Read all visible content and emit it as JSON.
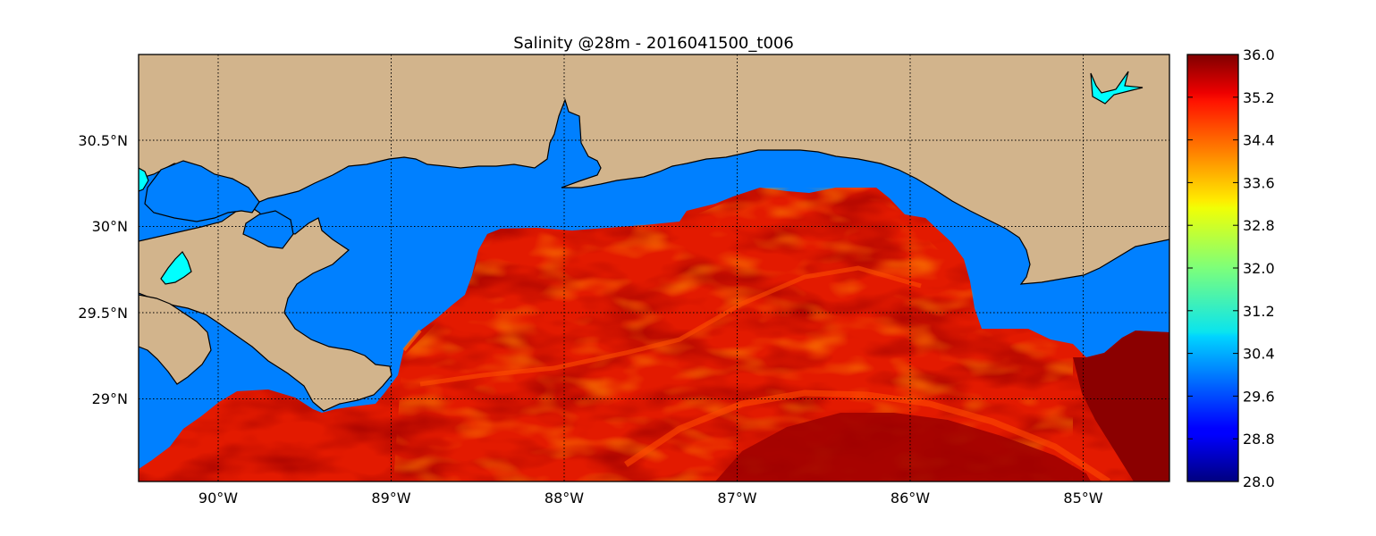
{
  "title": "Salinity @28m - 2016041500_t006",
  "map": {
    "lon_labels": [
      "90°W",
      "89°W",
      "88°W",
      "87°W",
      "86°W",
      "85°W"
    ],
    "lat_labels": [
      "30.5°N",
      "30°N",
      "29.5°N",
      "29°N"
    ],
    "lon_values": [
      -90,
      -89,
      -88,
      -87,
      -86,
      -85
    ],
    "lat_values": [
      30.5,
      30.0,
      29.5,
      29.0
    ],
    "lon_range": [
      -90.47,
      -84.5
    ],
    "lat_range": [
      28.53,
      31.0
    ],
    "gridlines": true,
    "colors": {
      "land": "#d2b48c",
      "shelf_water": "#0080ff",
      "inland_water": "#00ffff",
      "coastline": "#000000"
    }
  },
  "colorbar": {
    "colormap": "jet",
    "min": 28.0,
    "max": 36.0,
    "tick_labels": [
      "36.0",
      "35.2",
      "34.4",
      "33.6",
      "32.8",
      "32.0",
      "31.2",
      "30.4",
      "29.6",
      "28.8",
      "28.0"
    ],
    "tick_values": [
      36.0,
      35.2,
      34.4,
      33.6,
      32.8,
      32.0,
      31.2,
      30.4,
      29.6,
      28.8,
      28.0
    ]
  }
}
